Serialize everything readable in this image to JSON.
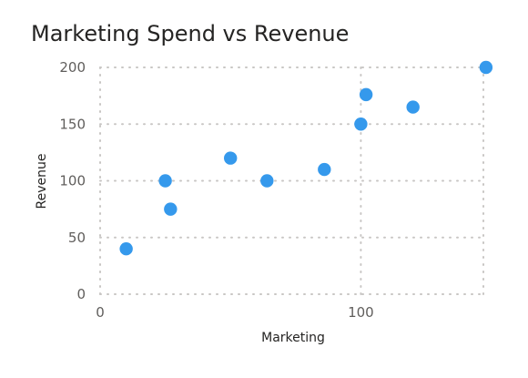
{
  "chart_data": {
    "type": "scatter",
    "title": "Marketing Spend vs Revenue",
    "xlabel": "Marketing",
    "ylabel": "Revenue",
    "xlim": [
      0,
      147
    ],
    "ylim": [
      0,
      200
    ],
    "x_ticks": [
      0,
      100
    ],
    "y_ticks": [
      0,
      50,
      100,
      150,
      200
    ],
    "grid": true,
    "legend": "none",
    "marker_color": "#3599ec",
    "points": [
      {
        "x": 10,
        "y": 40
      },
      {
        "x": 25,
        "y": 100
      },
      {
        "x": 27,
        "y": 75
      },
      {
        "x": 50,
        "y": 120
      },
      {
        "x": 64,
        "y": 100
      },
      {
        "x": 86,
        "y": 110
      },
      {
        "x": 100,
        "y": 150
      },
      {
        "x": 102,
        "y": 176
      },
      {
        "x": 120,
        "y": 165
      },
      {
        "x": 148,
        "y": 200
      }
    ]
  }
}
